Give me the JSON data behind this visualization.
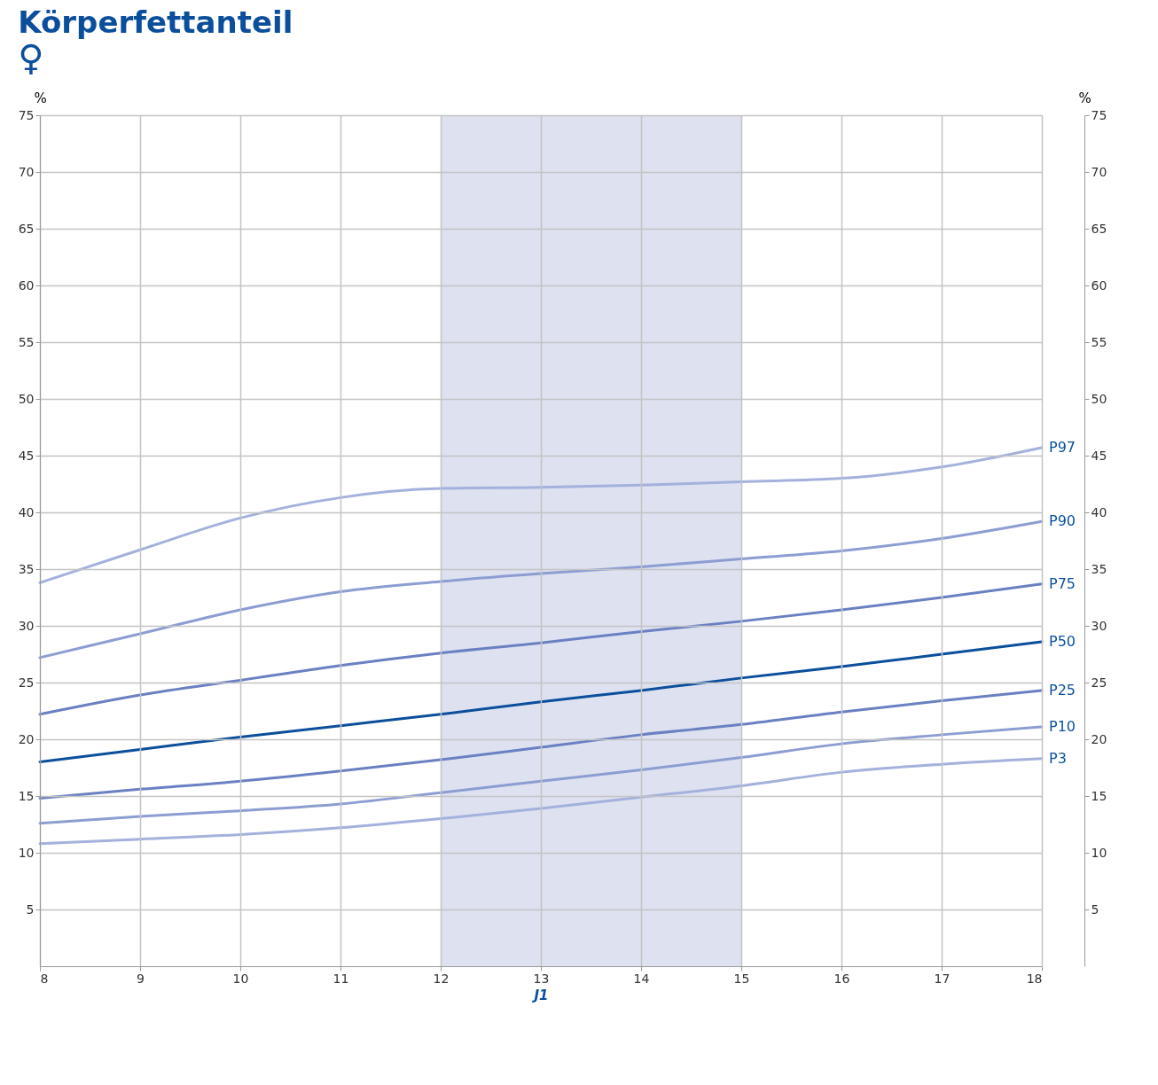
{
  "chart_data": {
    "type": "line",
    "title": "Körperfettanteil",
    "subtitle": "♀",
    "xlabel": "J1",
    "ylabel": "%",
    "y2label": "%",
    "x": [
      8,
      9,
      10,
      11,
      12,
      13,
      14,
      15,
      16,
      17,
      18
    ],
    "xlim": [
      8,
      18
    ],
    "xticks": [
      8,
      9,
      10,
      11,
      12,
      13,
      14,
      15,
      16,
      17,
      18
    ],
    "ylim": [
      0,
      75
    ],
    "yticks": [
      5,
      10,
      15,
      20,
      25,
      30,
      35,
      40,
      45,
      50,
      55,
      60,
      65,
      70,
      75
    ],
    "y2lim": [
      0,
      75
    ],
    "y2ticks": [
      5,
      10,
      15,
      20,
      25,
      30,
      35,
      40,
      45,
      50,
      55,
      60,
      65,
      70,
      75
    ],
    "grid": true,
    "legend": false,
    "marker": "none",
    "line_style": "solid",
    "bands": [
      {
        "axis": "x",
        "from": 12,
        "to": 15,
        "color": "#dde1f0"
      }
    ],
    "series": [
      {
        "name": "P97",
        "color": "#a3b1dc",
        "values": [
          33.8,
          36.7,
          39.5,
          41.3,
          42.1,
          42.2,
          42.4,
          42.7,
          43.0,
          44.0,
          45.7
        ]
      },
      {
        "name": "P90",
        "color": "#8c9dd2",
        "values": [
          27.2,
          29.3,
          31.4,
          33.0,
          33.9,
          34.6,
          35.2,
          35.9,
          36.6,
          37.7,
          39.2
        ]
      },
      {
        "name": "P75",
        "color": "#6a80c2",
        "values": [
          22.2,
          23.9,
          25.2,
          26.5,
          27.6,
          28.5,
          29.5,
          30.4,
          31.4,
          32.5,
          33.7
        ]
      },
      {
        "name": "P50",
        "color": "#0b4f9c",
        "values": [
          18.0,
          19.1,
          20.2,
          21.2,
          22.2,
          23.3,
          24.3,
          25.4,
          26.4,
          27.5,
          28.6
        ]
      },
      {
        "name": "P25",
        "color": "#6a80c2",
        "values": [
          14.8,
          15.6,
          16.3,
          17.2,
          18.2,
          19.3,
          20.4,
          21.3,
          22.4,
          23.4,
          24.3
        ]
      },
      {
        "name": "P10",
        "color": "#8c9dd2",
        "values": [
          12.6,
          13.2,
          13.7,
          14.3,
          15.3,
          16.3,
          17.3,
          18.4,
          19.6,
          20.4,
          21.1
        ]
      },
      {
        "name": "P3",
        "color": "#a3b1dc",
        "values": [
          10.8,
          11.2,
          11.6,
          12.2,
          13.0,
          13.9,
          14.9,
          15.9,
          17.1,
          17.8,
          18.3
        ]
      }
    ]
  }
}
